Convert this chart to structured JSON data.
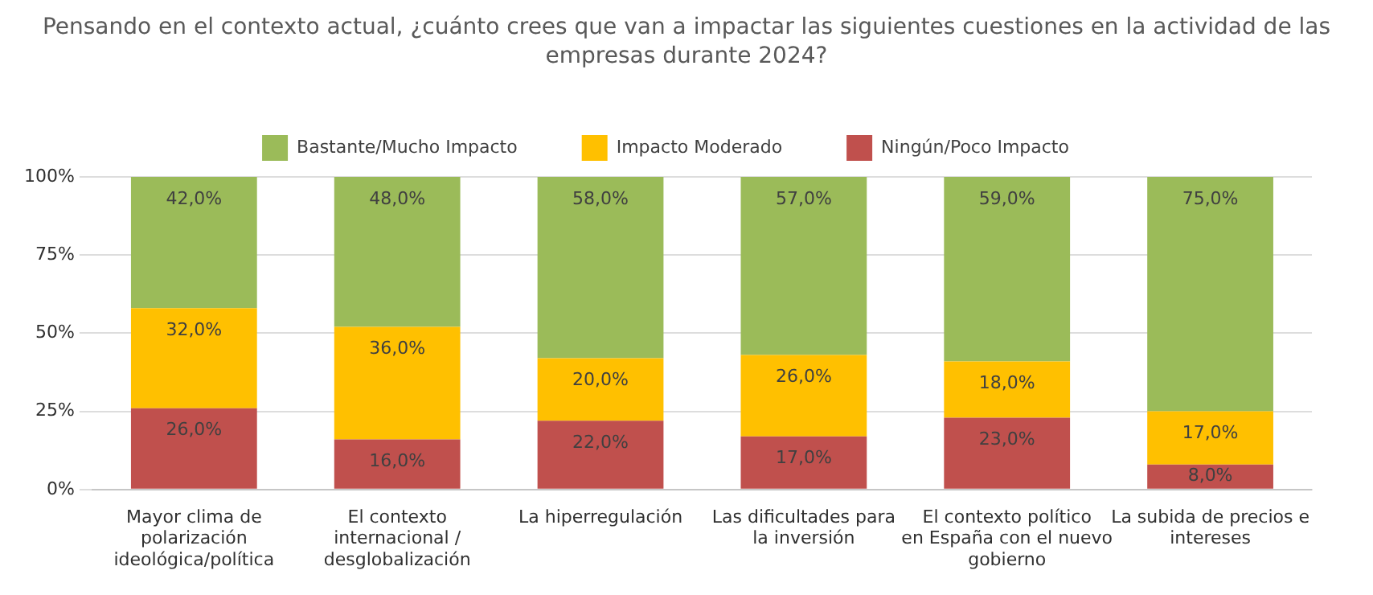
{
  "chart_data": {
    "type": "bar",
    "stacked": true,
    "title": "Pensando en el contexto actual, ¿cuánto crees que van a impactar las siguientes cuestiones en la actividad de las empresas durante 2024?",
    "categories": [
      "Mayor clima de polarización ideológica/política",
      "El contexto internacional / desglobalización",
      "La hiperregulación",
      "Las dificultades para la inversión",
      "El contexto político en España con el nuevo gobierno",
      "La subida de precios e intereses"
    ],
    "series": [
      {
        "name": "Ningún/Poco Impacto",
        "color": "#c0504d",
        "values": [
          26,
          16,
          22,
          17,
          23,
          8
        ],
        "value_labels": [
          "26,0%",
          "16,0%",
          "22,0%",
          "17,0%",
          "23,0%",
          "8,0%"
        ]
      },
      {
        "name": "Impacto Moderado",
        "color": "#ffc000",
        "values": [
          32,
          36,
          20,
          26,
          18,
          17
        ],
        "value_labels": [
          "32,0%",
          "36,0%",
          "20,0%",
          "26,0%",
          "18,0%",
          "17,0%"
        ]
      },
      {
        "name": "Bastante/Mucho Impacto",
        "color": "#9bbb59",
        "values": [
          42,
          48,
          58,
          57,
          59,
          75
        ],
        "value_labels": [
          "42,0%",
          "48,0%",
          "58,0%",
          "57,0%",
          "59,0%",
          "75,0%"
        ]
      }
    ],
    "ylim": [
      0,
      100
    ],
    "yticks": [
      {
        "value": 0,
        "label": "0%"
      },
      {
        "value": 25,
        "label": "25%"
      },
      {
        "value": 50,
        "label": "50%"
      },
      {
        "value": 75,
        "label": "75%"
      },
      {
        "value": 100,
        "label": "100%"
      }
    ],
    "grid": "y",
    "legend": "top"
  }
}
